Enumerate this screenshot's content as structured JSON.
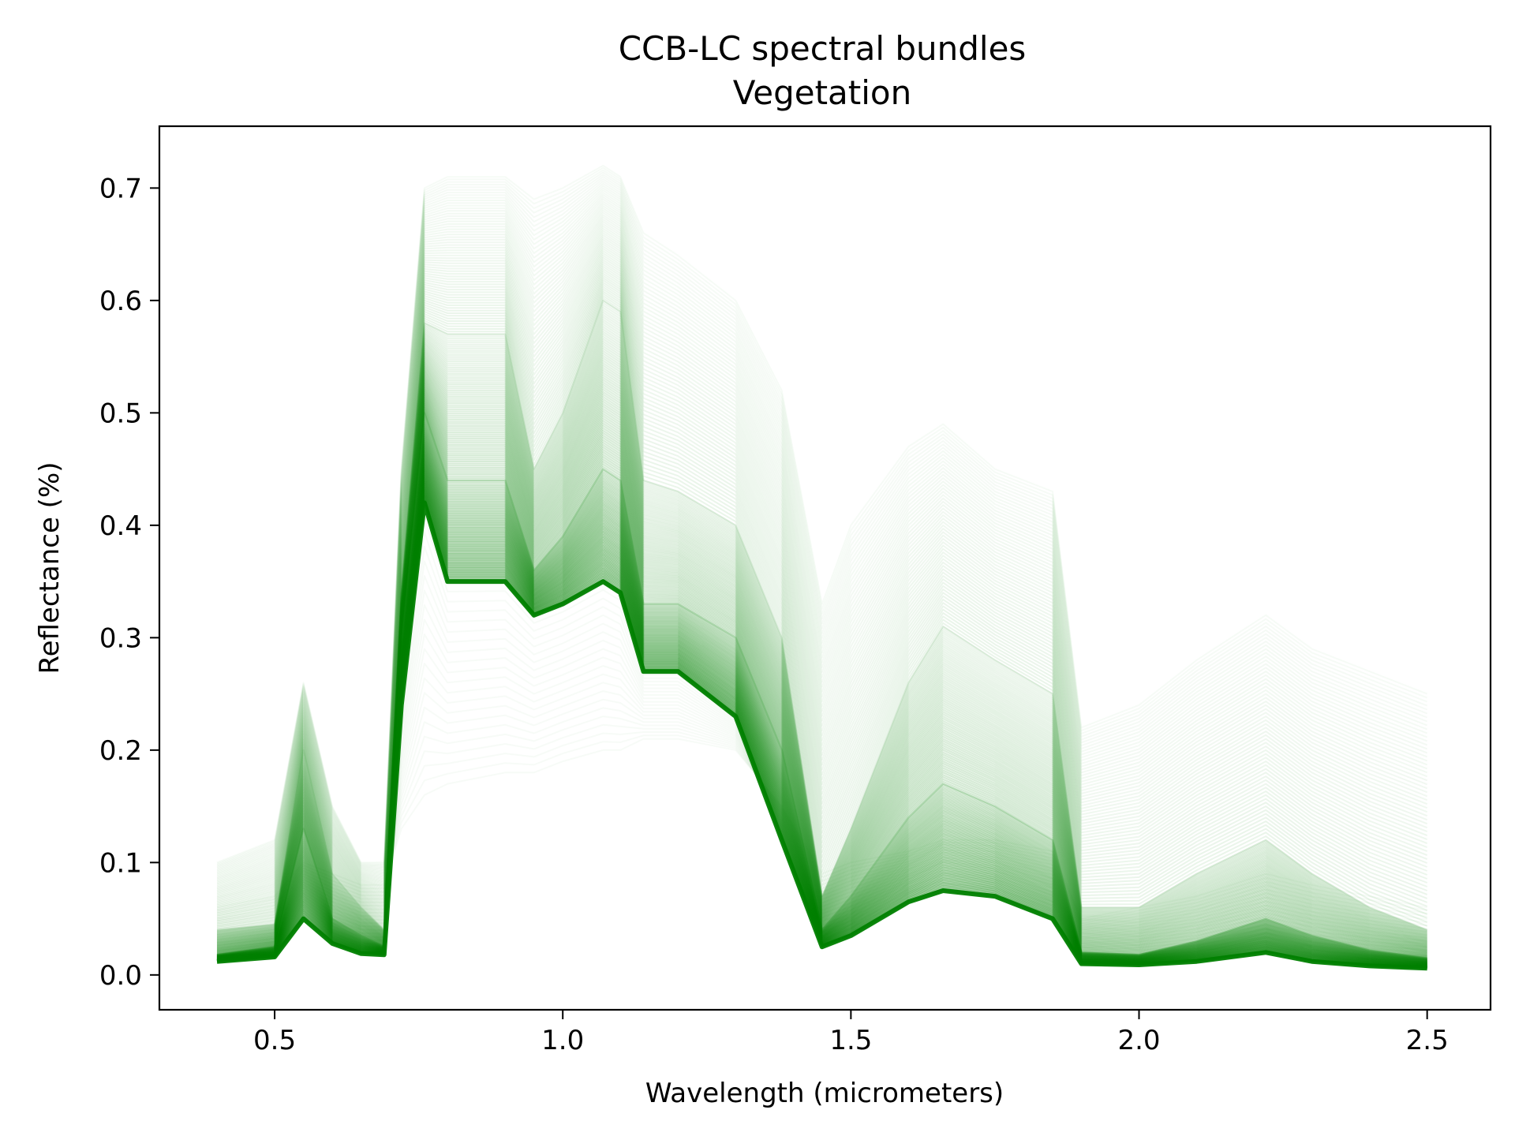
{
  "chart_data": {
    "type": "line",
    "title": "CCB-LC spectral bundles",
    "subtitle": "Vegetation",
    "xlabel": "Wavelength (micrometers)",
    "ylabel": "Reflectance (%)",
    "xlim": [
      0.3,
      2.61
    ],
    "ylim": [
      -0.031,
      0.755
    ],
    "xticks": [
      0.5,
      1.0,
      1.5,
      2.0,
      2.5
    ],
    "xtick_labels": [
      "0.5",
      "1.0",
      "1.5",
      "2.0",
      "2.5"
    ],
    "yticks": [
      0.0,
      0.1,
      0.2,
      0.3,
      0.4,
      0.5,
      0.6,
      0.7
    ],
    "ytick_labels": [
      "0.0",
      "0.1",
      "0.2",
      "0.3",
      "0.4",
      "0.5",
      "0.6",
      "0.7"
    ],
    "grid": false,
    "legend": "none",
    "line_color": "#008000",
    "bundle_description": "Many semi-transparent vegetation reflectance spectra; representative envelope curves below",
    "series": [
      {
        "name": "",
        "x": [
          0.4,
          0.5,
          0.55,
          0.6,
          0.65,
          0.69,
          0.72,
          0.76,
          0.8,
          0.9,
          0.95,
          1.0,
          1.07,
          1.1,
          1.14,
          1.2,
          1.3,
          1.38,
          1.45,
          1.5,
          1.6,
          1.66,
          1.75,
          1.85,
          1.9,
          2.0,
          2.1,
          2.22,
          2.3,
          2.4,
          2.5
        ],
        "values": [
          0.012,
          0.016,
          0.05,
          0.028,
          0.019,
          0.018,
          0.24,
          0.42,
          0.35,
          0.35,
          0.32,
          0.33,
          0.35,
          0.34,
          0.27,
          0.27,
          0.23,
          0.12,
          0.025,
          0.035,
          0.065,
          0.075,
          0.07,
          0.05,
          0.01,
          0.009,
          0.012,
          0.02,
          0.012,
          0.008,
          0.006
        ]
      },
      {
        "name": "",
        "x": [
          0.4,
          0.5,
          0.55,
          0.6,
          0.65,
          0.69,
          0.72,
          0.76,
          0.8,
          0.9,
          0.95,
          1.0,
          1.07,
          1.1,
          1.14,
          1.2,
          1.3,
          1.38,
          1.45,
          1.5,
          1.6,
          1.66,
          1.75,
          1.85,
          1.9,
          2.0,
          2.1,
          2.22,
          2.3,
          2.4,
          2.5
        ],
        "values": [
          0.018,
          0.025,
          0.13,
          0.05,
          0.035,
          0.025,
          0.3,
          0.5,
          0.44,
          0.44,
          0.36,
          0.39,
          0.45,
          0.44,
          0.33,
          0.33,
          0.3,
          0.2,
          0.04,
          0.07,
          0.14,
          0.17,
          0.15,
          0.12,
          0.02,
          0.018,
          0.03,
          0.05,
          0.035,
          0.022,
          0.015
        ]
      },
      {
        "name": "",
        "x": [
          0.4,
          0.5,
          0.55,
          0.6,
          0.65,
          0.69,
          0.72,
          0.76,
          0.8,
          0.9,
          0.95,
          1.0,
          1.07,
          1.1,
          1.14,
          1.2,
          1.3,
          1.38,
          1.45,
          1.5,
          1.6,
          1.66,
          1.75,
          1.85,
          1.9,
          2.0,
          2.1,
          2.22,
          2.3,
          2.4,
          2.5
        ],
        "values": [
          0.04,
          0.045,
          0.2,
          0.09,
          0.06,
          0.04,
          0.34,
          0.58,
          0.57,
          0.57,
          0.45,
          0.5,
          0.6,
          0.59,
          0.44,
          0.43,
          0.4,
          0.3,
          0.07,
          0.13,
          0.26,
          0.31,
          0.28,
          0.25,
          0.06,
          0.06,
          0.09,
          0.12,
          0.09,
          0.06,
          0.04
        ]
      },
      {
        "name": "",
        "x": [
          0.4,
          0.5,
          0.55,
          0.6,
          0.65,
          0.69,
          0.72,
          0.76,
          0.8,
          0.9,
          0.95,
          1.0,
          1.07,
          1.1,
          1.14,
          1.2,
          1.3,
          1.38,
          1.45,
          1.5,
          1.6,
          1.66,
          1.75,
          1.85,
          1.9,
          2.0,
          2.1,
          2.22,
          2.3,
          2.4,
          2.5
        ],
        "values": [
          0.1,
          0.12,
          0.26,
          0.15,
          0.1,
          0.1,
          0.45,
          0.7,
          0.71,
          0.71,
          0.69,
          0.7,
          0.72,
          0.71,
          0.66,
          0.64,
          0.6,
          0.52,
          0.33,
          0.4,
          0.47,
          0.49,
          0.45,
          0.43,
          0.22,
          0.24,
          0.28,
          0.32,
          0.29,
          0.27,
          0.25
        ]
      },
      {
        "name": "",
        "x": [
          0.4,
          0.5,
          0.55,
          0.6,
          0.65,
          0.69,
          0.72,
          0.76,
          0.8,
          0.9,
          0.95,
          1.0,
          1.07,
          1.1,
          1.14,
          1.2,
          1.3,
          1.38,
          1.45,
          1.5,
          1.6,
          1.66,
          1.75,
          1.85,
          1.9,
          2.0,
          2.1,
          2.22,
          2.3,
          2.4,
          2.5
        ],
        "values": [
          0.06,
          0.07,
          0.1,
          0.09,
          0.08,
          0.08,
          0.13,
          0.16,
          0.17,
          0.18,
          0.18,
          0.19,
          0.2,
          0.2,
          0.21,
          0.21,
          0.2,
          0.15,
          0.09,
          0.1,
          0.11,
          0.12,
          0.12,
          0.11,
          0.05,
          0.06,
          0.07,
          0.09,
          0.08,
          0.07,
          0.06
        ]
      }
    ]
  }
}
